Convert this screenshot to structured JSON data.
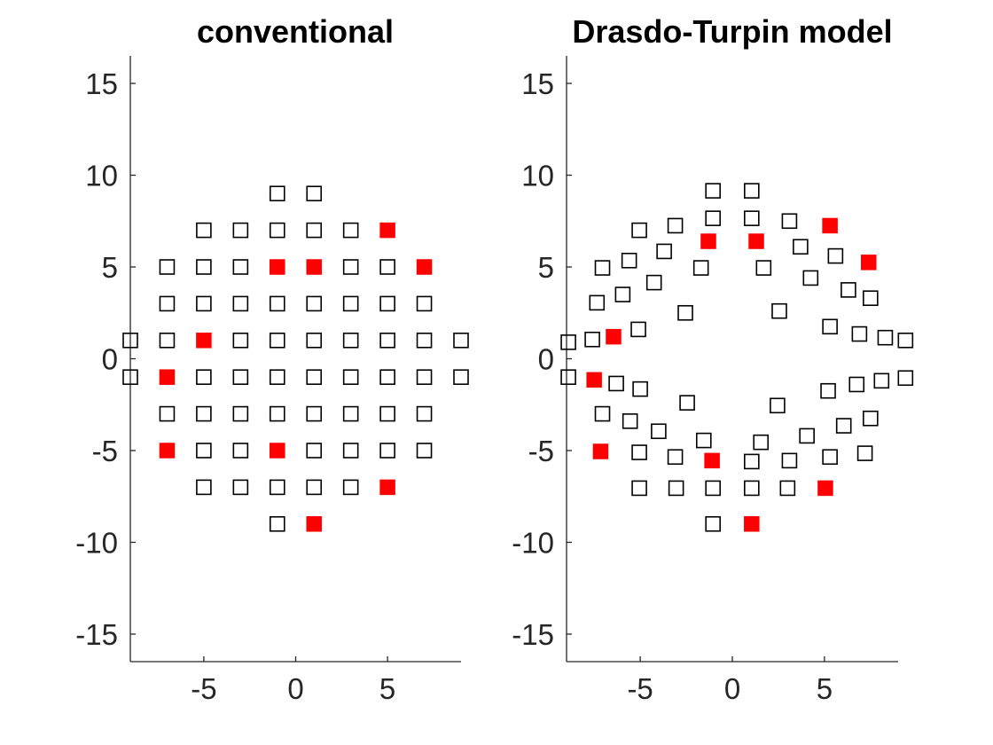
{
  "chart_data": [
    {
      "type": "scatter",
      "title": "conventional",
      "xlim": [
        -9,
        9
      ],
      "ylim": [
        -16.5,
        16.5
      ],
      "xticks": [
        -5,
        0,
        5
      ],
      "xtick_labels": [
        "-5",
        "0",
        "5"
      ],
      "yticks": [
        15,
        10,
        5,
        0,
        -5,
        -10,
        -15
      ],
      "ytick_labels": [
        "15",
        "10",
        "5",
        "0",
        "-5",
        "-10",
        "-15"
      ],
      "grid": false,
      "colors": {
        "open": "#000000",
        "filled": "#ff0000"
      },
      "series": [
        {
          "marker": "open-square",
          "points": [
            [
              -1,
              9
            ],
            [
              1,
              9
            ],
            [
              -5,
              7
            ],
            [
              -3,
              7
            ],
            [
              -1,
              7
            ],
            [
              1,
              7
            ],
            [
              3,
              7
            ],
            [
              -7,
              5
            ],
            [
              -5,
              5
            ],
            [
              -3,
              5
            ],
            [
              3,
              5
            ],
            [
              5,
              5
            ],
            [
              -7,
              3
            ],
            [
              -5,
              3
            ],
            [
              -3,
              3
            ],
            [
              -1,
              3
            ],
            [
              1,
              3
            ],
            [
              3,
              3
            ],
            [
              5,
              3
            ],
            [
              7,
              3
            ],
            [
              -9,
              1
            ],
            [
              -7,
              1
            ],
            [
              -3,
              1
            ],
            [
              -1,
              1
            ],
            [
              1,
              1
            ],
            [
              3,
              1
            ],
            [
              5,
              1
            ],
            [
              7,
              1
            ],
            [
              9,
              1
            ],
            [
              -9,
              -1
            ],
            [
              -5,
              -1
            ],
            [
              -3,
              -1
            ],
            [
              -1,
              -1
            ],
            [
              1,
              -1
            ],
            [
              3,
              -1
            ],
            [
              5,
              -1
            ],
            [
              7,
              -1
            ],
            [
              9,
              -1
            ],
            [
              -7,
              -3
            ],
            [
              -5,
              -3
            ],
            [
              -3,
              -3
            ],
            [
              -1,
              -3
            ],
            [
              1,
              -3
            ],
            [
              3,
              -3
            ],
            [
              5,
              -3
            ],
            [
              7,
              -3
            ],
            [
              -5,
              -5
            ],
            [
              -3,
              -5
            ],
            [
              1,
              -5
            ],
            [
              3,
              -5
            ],
            [
              5,
              -5
            ],
            [
              7,
              -5
            ],
            [
              -5,
              -7
            ],
            [
              -3,
              -7
            ],
            [
              -1,
              -7
            ],
            [
              1,
              -7
            ],
            [
              3,
              -7
            ],
            [
              -1,
              -9
            ]
          ]
        },
        {
          "marker": "filled-square",
          "points": [
            [
              5,
              7
            ],
            [
              -1,
              5
            ],
            [
              1,
              5
            ],
            [
              7,
              5
            ],
            [
              -5,
              1
            ],
            [
              -7,
              -1
            ],
            [
              -7,
              -5
            ],
            [
              -1,
              -5
            ],
            [
              5,
              -7
            ],
            [
              1,
              -9
            ]
          ]
        }
      ]
    },
    {
      "type": "scatter",
      "title": "Drasdo-Turpin model",
      "xlim": [
        -9,
        9
      ],
      "ylim": [
        -16.5,
        16.5
      ],
      "xticks": [
        -5,
        0,
        5
      ],
      "xtick_labels": [
        "-5",
        "0",
        "5"
      ],
      "yticks": [
        15,
        10,
        5,
        0,
        -5,
        -10,
        -15
      ],
      "ytick_labels": [
        "15",
        "10",
        "5",
        "0",
        "-5",
        "-10",
        "-15"
      ],
      "grid": false,
      "colors": {
        "open": "#000000",
        "filled": "#ff0000"
      },
      "series": [
        {
          "marker": "open-square",
          "points": [
            [
              -1.05,
              9.15
            ],
            [
              1.05,
              9.15
            ],
            [
              -1.05,
              7.65
            ],
            [
              1.05,
              7.65
            ],
            [
              -3.1,
              7.25
            ],
            [
              3.1,
              7.5
            ],
            [
              -5.05,
              7.0
            ],
            [
              -3.7,
              5.85
            ],
            [
              3.7,
              6.1
            ],
            [
              -5.6,
              5.35
            ],
            [
              5.6,
              5.6
            ],
            [
              -7.05,
              4.95
            ],
            [
              -1.7,
              4.95
            ],
            [
              1.7,
              4.95
            ],
            [
              -4.25,
              4.15
            ],
            [
              4.25,
              4.4
            ],
            [
              -5.95,
              3.5
            ],
            [
              6.3,
              3.75
            ],
            [
              -7.35,
              3.05
            ],
            [
              7.5,
              3.3
            ],
            [
              -2.55,
              2.5
            ],
            [
              2.55,
              2.6
            ],
            [
              -5.1,
              1.6
            ],
            [
              5.3,
              1.75
            ],
            [
              6.9,
              1.35
            ],
            [
              8.3,
              1.15
            ],
            [
              -8.9,
              0.9
            ],
            [
              -7.6,
              1.05
            ],
            [
              9.4,
              1.0
            ],
            [
              -8.9,
              -1.0
            ],
            [
              -6.3,
              -1.35
            ],
            [
              -5.0,
              -1.65
            ],
            [
              5.2,
              -1.75
            ],
            [
              6.75,
              -1.4
            ],
            [
              8.1,
              -1.2
            ],
            [
              9.4,
              -1.05
            ],
            [
              -7.05,
              -3.0
            ],
            [
              -5.55,
              -3.4
            ],
            [
              7.5,
              -3.25
            ],
            [
              -2.45,
              -2.4
            ],
            [
              2.45,
              -2.55
            ],
            [
              -4.0,
              -3.95
            ],
            [
              6.05,
              -3.65
            ],
            [
              4.05,
              -4.2
            ],
            [
              -1.55,
              -4.45
            ],
            [
              1.55,
              -4.55
            ],
            [
              -5.05,
              -5.1
            ],
            [
              -3.1,
              -5.35
            ],
            [
              1.05,
              -5.6
            ],
            [
              3.1,
              -5.55
            ],
            [
              5.3,
              -5.35
            ],
            [
              7.2,
              -5.15
            ],
            [
              -5.05,
              -7.05
            ],
            [
              -3.05,
              -7.05
            ],
            [
              -1.05,
              -7.05
            ],
            [
              1.05,
              -7.05
            ],
            [
              3.0,
              -7.05
            ],
            [
              -1.05,
              -9.0
            ]
          ]
        },
        {
          "marker": "filled-square",
          "points": [
            [
              5.3,
              7.25
            ],
            [
              -1.3,
              6.4
            ],
            [
              1.3,
              6.4
            ],
            [
              7.4,
              5.25
            ],
            [
              -6.45,
              1.2
            ],
            [
              -7.5,
              -1.15
            ],
            [
              -7.15,
              -5.05
            ],
            [
              -1.1,
              -5.55
            ],
            [
              5.05,
              -7.05
            ],
            [
              1.05,
              -9.0
            ]
          ]
        }
      ]
    }
  ]
}
